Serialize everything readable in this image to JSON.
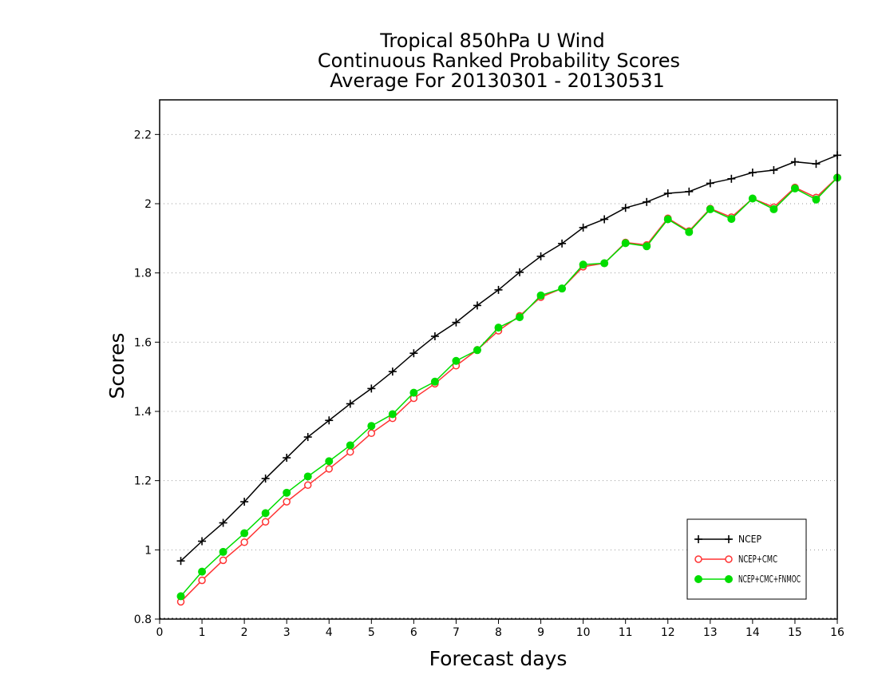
{
  "chart_data": {
    "type": "line",
    "title_lines": [
      "Tropical 850hPa U Wind",
      "Continuous Ranked Probability Scores",
      "Average For 20130301 - 20130531"
    ],
    "xlabel": "Forecast days",
    "ylabel": "Scores",
    "xlim": [
      0,
      16
    ],
    "ylim": [
      0.8,
      2.3
    ],
    "xticks": [
      0,
      1,
      2,
      3,
      4,
      5,
      6,
      7,
      8,
      9,
      10,
      11,
      12,
      13,
      14,
      15,
      16
    ],
    "xtick_labels": [
      "0",
      "1",
      "2",
      "3",
      "4",
      "5",
      "6",
      "7",
      "8",
      "9",
      "10",
      "11",
      "12",
      "13",
      "14",
      "15",
      "16"
    ],
    "yticks": [
      0.8,
      1.0,
      1.2,
      1.4,
      1.6,
      1.8,
      2.0,
      2.2
    ],
    "ytick_labels": [
      "0.8",
      "1",
      "1.2",
      "1.4",
      "1.6",
      "1.8",
      "2",
      "2.2"
    ],
    "grid": "horizontal dotted",
    "legend_position": "bottom-right",
    "x": [
      0.5,
      1,
      1.5,
      2,
      2.5,
      3,
      3.5,
      4,
      4.5,
      5,
      5.5,
      6,
      6.5,
      7,
      7.5,
      8,
      8.5,
      9,
      9.5,
      10,
      10.5,
      11,
      11.5,
      12,
      12.5,
      13,
      13.5,
      14,
      14.5,
      15,
      15.5,
      16
    ],
    "series": [
      {
        "name": "NCEP",
        "color": "#000000",
        "marker": "plus",
        "values": [
          0.968,
          1.025,
          1.078,
          1.139,
          1.206,
          1.266,
          1.326,
          1.374,
          1.422,
          1.466,
          1.515,
          1.568,
          1.617,
          1.657,
          1.706,
          1.751,
          1.802,
          1.848,
          1.885,
          1.931,
          1.955,
          1.988,
          2.005,
          2.03,
          2.035,
          2.059,
          2.072,
          2.09,
          2.097,
          2.121,
          2.115,
          2.14
        ]
      },
      {
        "name": "NCEP+CMC",
        "color": "#ff3333",
        "marker": "open-circle",
        "values": [
          0.85,
          0.912,
          0.97,
          1.022,
          1.081,
          1.139,
          1.187,
          1.234,
          1.283,
          1.337,
          1.38,
          1.438,
          1.48,
          1.532,
          1.578,
          1.633,
          1.676,
          1.73,
          1.755,
          1.818,
          1.828,
          1.888,
          1.881,
          1.958,
          1.921,
          1.986,
          1.961,
          2.015,
          1.99,
          2.047,
          2.018,
          2.076
        ]
      },
      {
        "name": "NCEP+CMC+FNMOC",
        "color": "#00dd00",
        "marker": "filled-circle",
        "values": [
          0.866,
          0.937,
          0.994,
          1.048,
          1.106,
          1.165,
          1.212,
          1.256,
          1.302,
          1.358,
          1.392,
          1.454,
          1.486,
          1.546,
          1.577,
          1.642,
          1.672,
          1.735,
          1.755,
          1.824,
          1.828,
          1.886,
          1.877,
          1.955,
          1.918,
          1.984,
          1.956,
          2.015,
          1.984,
          2.044,
          2.012,
          2.075
        ]
      }
    ]
  }
}
